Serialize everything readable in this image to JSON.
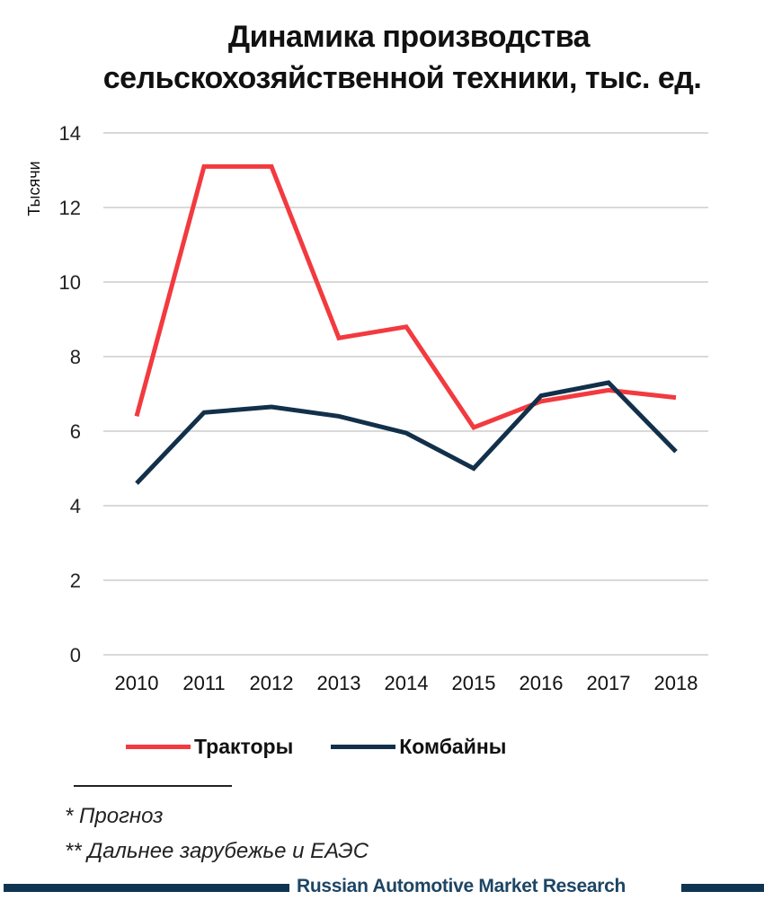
{
  "title": {
    "line1": "Динамика производства",
    "line2": "сельскохозяйственной техники, тыс. ед."
  },
  "y_axis": {
    "label": "Тысячи",
    "ticks": [
      "0",
      "2",
      "4",
      "6",
      "8",
      "10",
      "12",
      "14"
    ]
  },
  "x_axis": {
    "ticks": [
      "2010",
      "2011",
      "2012",
      "2013",
      "2014",
      "2015",
      "2016",
      "2017",
      "2018"
    ]
  },
  "legend": {
    "items": [
      {
        "label": "Тракторы",
        "color": "#f23a3f"
      },
      {
        "label": "Комбайны",
        "color": "#13304a"
      }
    ]
  },
  "footnotes": {
    "note1": "* Прогноз",
    "note2": "** Дальнее зарубежье и ЕАЭС"
  },
  "branding": {
    "text": "Russian Automotive Market Research",
    "color": "#0f3552"
  },
  "chart_data": {
    "type": "line",
    "title": "Динамика производства сельскохозяйственной техники, тыс. ед.",
    "xlabel": "",
    "ylabel": "Тысячи",
    "categories": [
      "2010",
      "2011",
      "2012",
      "2013",
      "2014",
      "2015",
      "2016",
      "2017",
      "2018"
    ],
    "series": [
      {
        "name": "Тракторы",
        "color": "#f23a3f",
        "values": [
          6.4,
          13.1,
          13.1,
          8.5,
          8.8,
          6.1,
          6.8,
          7.1,
          6.9
        ]
      },
      {
        "name": "Комбайны",
        "color": "#13304a",
        "values": [
          4.6,
          6.5,
          6.65,
          6.4,
          5.95,
          5.0,
          6.95,
          7.3,
          5.45
        ]
      }
    ],
    "ylim": [
      0,
      14
    ],
    "ytick_step": 2,
    "grid": "horizontal",
    "legend_position": "bottom"
  }
}
